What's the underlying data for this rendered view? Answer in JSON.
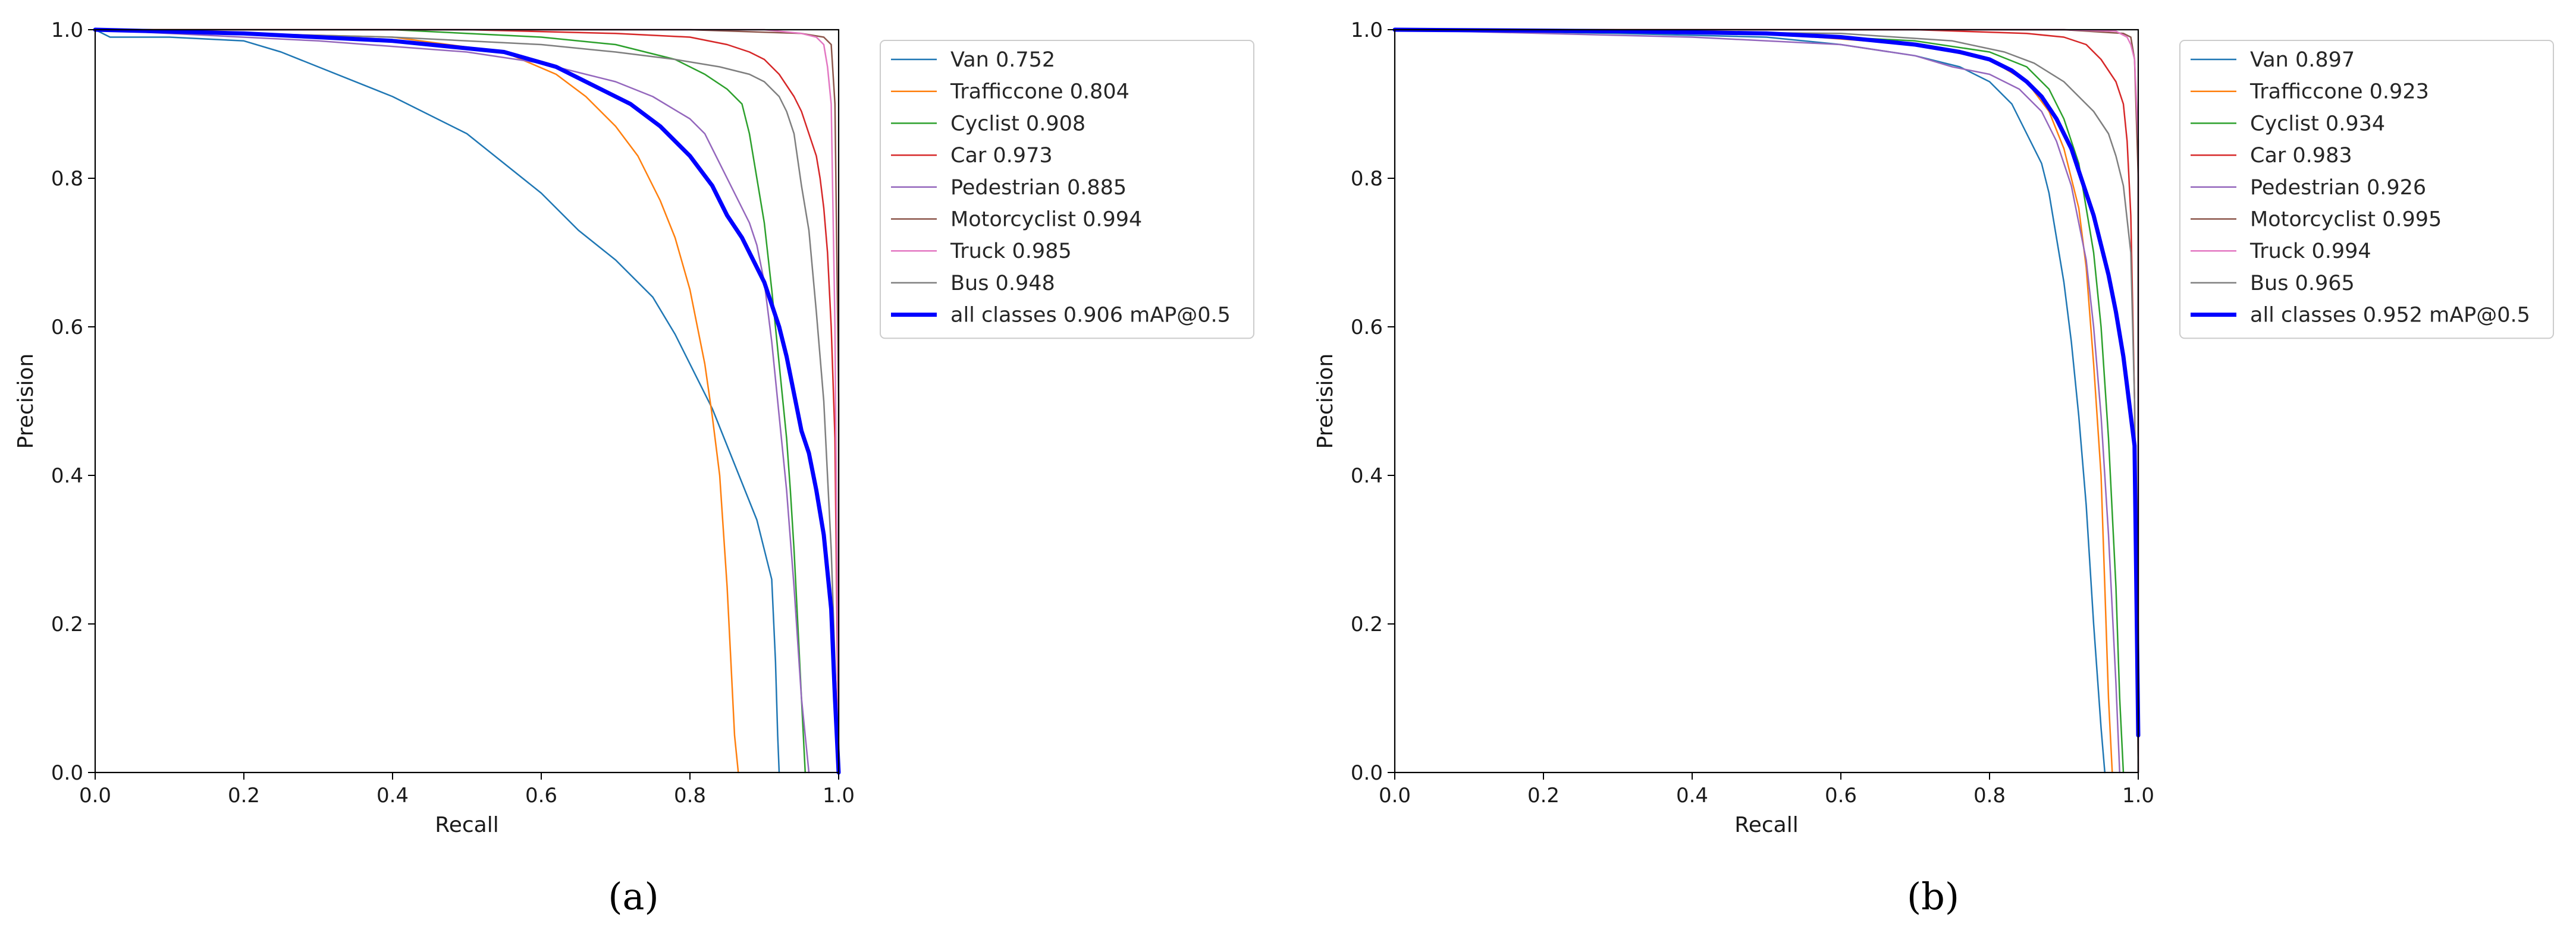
{
  "chart_data": [
    {
      "type": "line",
      "panel_label": "(a)",
      "xlabel": "Recall",
      "ylabel": "Precision",
      "xlim": [
        0.0,
        1.0
      ],
      "ylim": [
        0.0,
        1.0
      ],
      "xticks": [
        "0.0",
        "0.2",
        "0.4",
        "0.6",
        "0.8",
        "1.0"
      ],
      "yticks": [
        "0.0",
        "0.2",
        "0.4",
        "0.6",
        "0.8",
        "1.0"
      ],
      "grid": false,
      "legend_position": "outside-right-top",
      "series": [
        {
          "name": "Van 0.752",
          "color": "#1f77b4",
          "width": 2.5,
          "x": [
            0,
            0.02,
            0.1,
            0.2,
            0.25,
            0.3,
            0.4,
            0.5,
            0.55,
            0.6,
            0.65,
            0.7,
            0.75,
            0.78,
            0.8,
            0.83,
            0.85,
            0.87,
            0.89,
            0.9,
            0.91,
            0.915,
            0.918,
            0.92
          ],
          "y": [
            1.0,
            0.99,
            0.99,
            0.985,
            0.97,
            0.95,
            0.91,
            0.86,
            0.82,
            0.78,
            0.73,
            0.69,
            0.64,
            0.59,
            0.55,
            0.49,
            0.44,
            0.39,
            0.34,
            0.3,
            0.26,
            0.15,
            0.05,
            0.0
          ]
        },
        {
          "name": "Trafficcone 0.804",
          "color": "#ff7f0e",
          "width": 2.5,
          "x": [
            0,
            0.2,
            0.4,
            0.55,
            0.62,
            0.66,
            0.7,
            0.73,
            0.76,
            0.78,
            0.8,
            0.82,
            0.83,
            0.84,
            0.85,
            0.855,
            0.86,
            0.865
          ],
          "y": [
            1.0,
            0.995,
            0.99,
            0.97,
            0.94,
            0.91,
            0.87,
            0.83,
            0.77,
            0.72,
            0.65,
            0.55,
            0.48,
            0.4,
            0.25,
            0.15,
            0.05,
            0.0
          ]
        },
        {
          "name": "Cyclist 0.908",
          "color": "#2ca02c",
          "width": 2.5,
          "x": [
            0,
            0.4,
            0.6,
            0.7,
            0.78,
            0.82,
            0.85,
            0.87,
            0.88,
            0.89,
            0.9,
            0.91,
            0.92,
            0.93,
            0.935,
            0.94,
            0.945,
            0.95,
            0.955
          ],
          "y": [
            1.0,
            1.0,
            0.99,
            0.98,
            0.96,
            0.94,
            0.92,
            0.9,
            0.86,
            0.8,
            0.74,
            0.65,
            0.55,
            0.45,
            0.38,
            0.3,
            0.2,
            0.1,
            0.0
          ]
        },
        {
          "name": "Car 0.973",
          "color": "#d62728",
          "width": 2.5,
          "x": [
            0,
            0.5,
            0.7,
            0.8,
            0.85,
            0.88,
            0.9,
            0.92,
            0.94,
            0.95,
            0.96,
            0.97,
            0.975,
            0.98,
            0.985,
            0.99,
            0.995,
            1.0
          ],
          "y": [
            1.0,
            1.0,
            0.995,
            0.99,
            0.98,
            0.97,
            0.96,
            0.94,
            0.91,
            0.89,
            0.86,
            0.83,
            0.8,
            0.76,
            0.7,
            0.6,
            0.45,
            0.0
          ]
        },
        {
          "name": "Pedestrian 0.885",
          "color": "#9467bd",
          "width": 2.5,
          "x": [
            0,
            0.3,
            0.5,
            0.6,
            0.7,
            0.75,
            0.8,
            0.82,
            0.85,
            0.87,
            0.88,
            0.89,
            0.9,
            0.91,
            0.92,
            0.93,
            0.94,
            0.95,
            0.96
          ],
          "y": [
            1.0,
            0.985,
            0.97,
            0.955,
            0.93,
            0.91,
            0.88,
            0.86,
            0.8,
            0.76,
            0.74,
            0.71,
            0.66,
            0.58,
            0.48,
            0.38,
            0.25,
            0.1,
            0.0
          ]
        },
        {
          "name": "Motorcyclist 0.994",
          "color": "#8c564b",
          "width": 2.5,
          "x": [
            0,
            0.8,
            0.95,
            0.98,
            0.99,
            0.995,
            1.0,
            1.0
          ],
          "y": [
            1.0,
            1.0,
            0.995,
            0.99,
            0.98,
            0.9,
            0.5,
            0.0
          ]
        },
        {
          "name": "Truck 0.985",
          "color": "#e377c2",
          "width": 2.5,
          "x": [
            0,
            0.9,
            0.95,
            0.97,
            0.98,
            0.985,
            0.99,
            0.995,
            1.0
          ],
          "y": [
            1.0,
            1.0,
            0.995,
            0.99,
            0.98,
            0.95,
            0.9,
            0.6,
            0.0
          ]
        },
        {
          "name": "Bus 0.948",
          "color": "#7f7f7f",
          "width": 2.5,
          "x": [
            0,
            0.4,
            0.6,
            0.7,
            0.78,
            0.84,
            0.88,
            0.9,
            0.92,
            0.93,
            0.94,
            0.95,
            0.96,
            0.97,
            0.98,
            0.99,
            1.0
          ],
          "y": [
            1.0,
            0.99,
            0.98,
            0.97,
            0.96,
            0.95,
            0.94,
            0.93,
            0.91,
            0.89,
            0.86,
            0.79,
            0.73,
            0.62,
            0.5,
            0.3,
            0.0
          ]
        },
        {
          "name": "all classes 0.906 mAP@0.5",
          "color": "#0000ff",
          "width": 7,
          "x": [
            0,
            0.2,
            0.4,
            0.55,
            0.62,
            0.68,
            0.72,
            0.76,
            0.8,
            0.83,
            0.85,
            0.87,
            0.88,
            0.9,
            0.92,
            0.93,
            0.94,
            0.95,
            0.96,
            0.97,
            0.98,
            0.99,
            0.995,
            1.0
          ],
          "y": [
            1.0,
            0.995,
            0.985,
            0.97,
            0.95,
            0.92,
            0.9,
            0.87,
            0.83,
            0.79,
            0.75,
            0.72,
            0.7,
            0.66,
            0.6,
            0.56,
            0.51,
            0.46,
            0.43,
            0.38,
            0.32,
            0.22,
            0.1,
            0.0
          ]
        }
      ]
    },
    {
      "type": "line",
      "panel_label": "(b)",
      "xlabel": "Recall",
      "ylabel": "Precision",
      "xlim": [
        0.0,
        1.0
      ],
      "ylim": [
        0.0,
        1.0
      ],
      "xticks": [
        "0.0",
        "0.2",
        "0.4",
        "0.6",
        "0.8",
        "1.0"
      ],
      "yticks": [
        "0.0",
        "0.2",
        "0.4",
        "0.6",
        "0.8",
        "1.0"
      ],
      "grid": false,
      "legend_position": "outside-right-top",
      "series": [
        {
          "name": "Van 0.897",
          "color": "#1f77b4",
          "width": 2.5,
          "x": [
            0,
            0.3,
            0.5,
            0.6,
            0.7,
            0.76,
            0.8,
            0.83,
            0.85,
            0.87,
            0.88,
            0.89,
            0.9,
            0.91,
            0.92,
            0.93,
            0.94,
            0.95,
            0.955
          ],
          "y": [
            1.0,
            0.995,
            0.99,
            0.98,
            0.965,
            0.95,
            0.93,
            0.9,
            0.86,
            0.82,
            0.78,
            0.72,
            0.66,
            0.58,
            0.48,
            0.36,
            0.2,
            0.06,
            0.0
          ]
        },
        {
          "name": "Trafficcone 0.923",
          "color": "#ff7f0e",
          "width": 2.5,
          "x": [
            0,
            0.5,
            0.7,
            0.8,
            0.85,
            0.88,
            0.9,
            0.92,
            0.93,
            0.94,
            0.95,
            0.955,
            0.96,
            0.965
          ],
          "y": [
            1.0,
            0.995,
            0.98,
            0.96,
            0.93,
            0.89,
            0.84,
            0.76,
            0.68,
            0.55,
            0.4,
            0.25,
            0.1,
            0.0
          ]
        },
        {
          "name": "Cyclist 0.934",
          "color": "#2ca02c",
          "width": 2.5,
          "x": [
            0,
            0.5,
            0.7,
            0.8,
            0.85,
            0.88,
            0.9,
            0.92,
            0.94,
            0.95,
            0.96,
            0.97,
            0.975,
            0.98
          ],
          "y": [
            1.0,
            0.995,
            0.985,
            0.97,
            0.95,
            0.92,
            0.88,
            0.82,
            0.7,
            0.6,
            0.45,
            0.25,
            0.1,
            0.0
          ]
        },
        {
          "name": "Car 0.983",
          "color": "#d62728",
          "width": 2.5,
          "x": [
            0,
            0.7,
            0.85,
            0.9,
            0.93,
            0.95,
            0.97,
            0.98,
            0.985,
            0.99,
            0.995,
            1.0
          ],
          "y": [
            1.0,
            1.0,
            0.995,
            0.99,
            0.98,
            0.96,
            0.93,
            0.9,
            0.85,
            0.75,
            0.5,
            0.0
          ]
        },
        {
          "name": "Pedestrian 0.926",
          "color": "#9467bd",
          "width": 2.5,
          "x": [
            0,
            0.2,
            0.4,
            0.6,
            0.7,
            0.75,
            0.8,
            0.84,
            0.87,
            0.89,
            0.91,
            0.93,
            0.94,
            0.95,
            0.96,
            0.97,
            0.975
          ],
          "y": [
            1.0,
            0.995,
            0.99,
            0.98,
            0.965,
            0.95,
            0.94,
            0.92,
            0.89,
            0.85,
            0.79,
            0.69,
            0.6,
            0.48,
            0.32,
            0.12,
            0.0
          ]
        },
        {
          "name": "Motorcyclist 0.995",
          "color": "#8c564b",
          "width": 2.5,
          "x": [
            0,
            0.9,
            0.98,
            0.99,
            0.995,
            1.0,
            1.0
          ],
          "y": [
            1.0,
            1.0,
            0.995,
            0.99,
            0.96,
            0.8,
            0.0
          ]
        },
        {
          "name": "Truck 0.994",
          "color": "#e377c2",
          "width": 2.5,
          "x": [
            0,
            0.9,
            0.97,
            0.985,
            0.99,
            0.995,
            1.0,
            1.0
          ],
          "y": [
            1.0,
            1.0,
            0.998,
            0.99,
            0.98,
            0.96,
            0.85,
            0.0
          ]
        },
        {
          "name": "Bus 0.965",
          "color": "#7f7f7f",
          "width": 2.5,
          "x": [
            0,
            0.6,
            0.75,
            0.82,
            0.86,
            0.9,
            0.92,
            0.94,
            0.96,
            0.97,
            0.98,
            0.99,
            0.995,
            1.0
          ],
          "y": [
            1.0,
            0.995,
            0.985,
            0.97,
            0.955,
            0.93,
            0.91,
            0.89,
            0.86,
            0.83,
            0.79,
            0.7,
            0.5,
            0.0
          ]
        },
        {
          "name": "all classes 0.952 mAP@0.5",
          "color": "#0000ff",
          "width": 7,
          "x": [
            0,
            0.3,
            0.5,
            0.6,
            0.7,
            0.76,
            0.8,
            0.83,
            0.85,
            0.87,
            0.89,
            0.9,
            0.91,
            0.92,
            0.93,
            0.94,
            0.95,
            0.96,
            0.97,
            0.98,
            0.985,
            0.99,
            0.995,
            1.0
          ],
          "y": [
            1.0,
            0.998,
            0.995,
            0.99,
            0.98,
            0.97,
            0.96,
            0.945,
            0.93,
            0.91,
            0.88,
            0.86,
            0.84,
            0.81,
            0.78,
            0.75,
            0.71,
            0.67,
            0.62,
            0.56,
            0.52,
            0.48,
            0.44,
            0.05
          ]
        }
      ]
    }
  ]
}
